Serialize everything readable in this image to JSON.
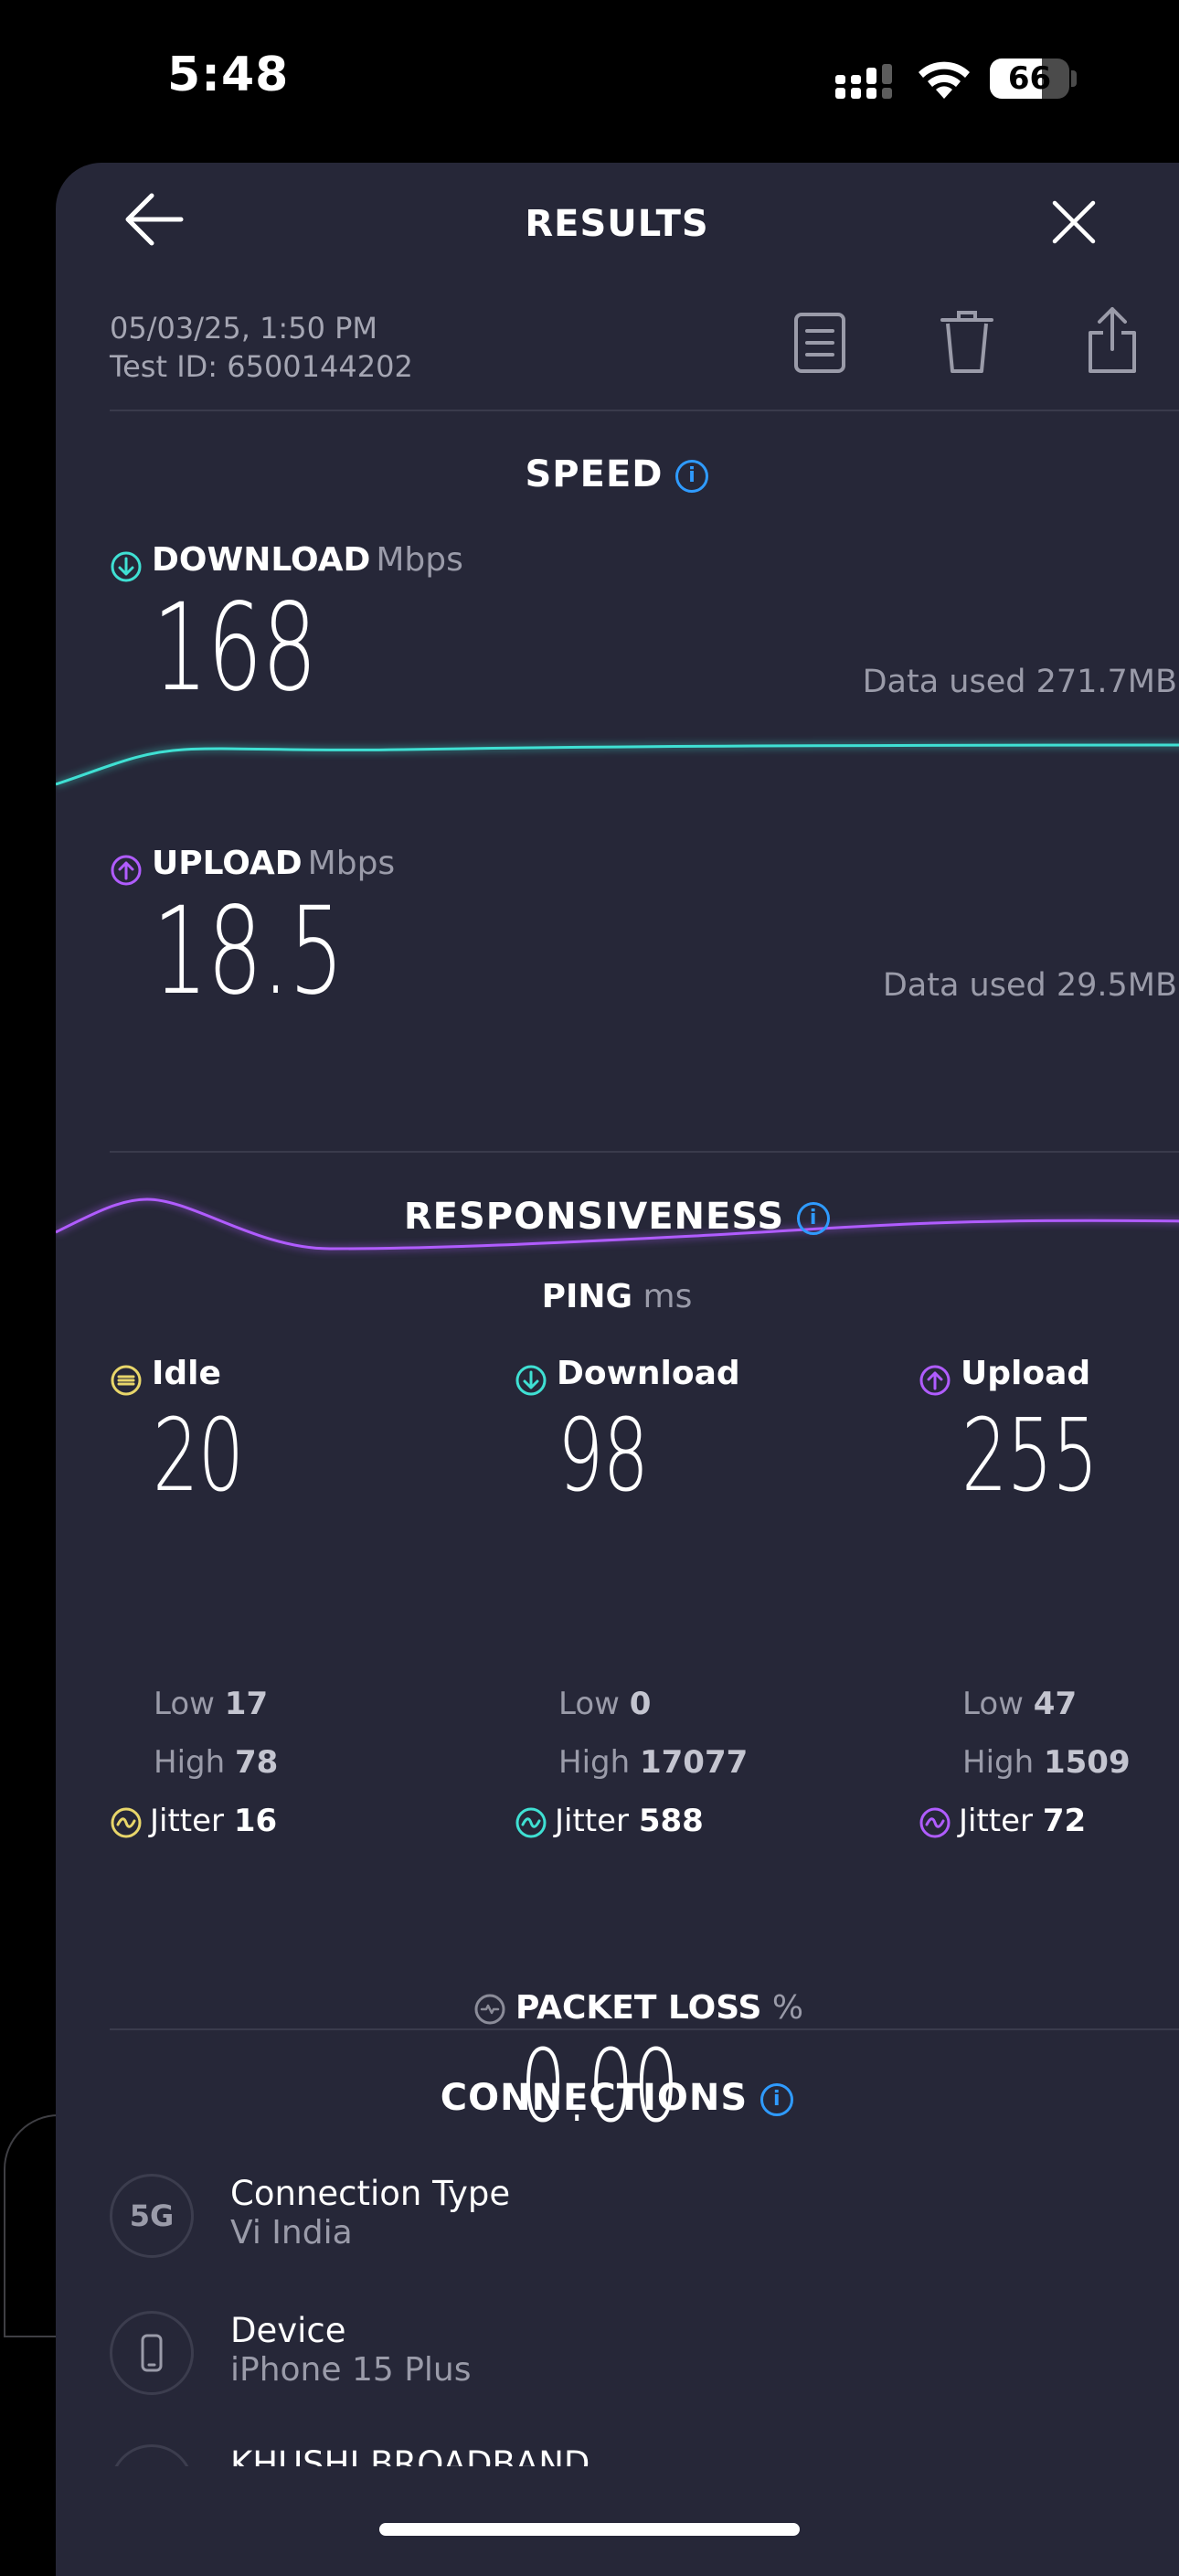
{
  "status_bar": {
    "time": "5:48",
    "battery": "66",
    "battery_level": 0.66
  },
  "header": {
    "title": "RESULTS"
  },
  "test": {
    "date": "05/03/25, 1:50 PM",
    "id": "Test ID: 6500144202"
  },
  "speed": {
    "title": "SPEED",
    "download": {
      "label": "DOWNLOAD",
      "unit": "Mbps",
      "value": "168",
      "data_used": "Data used 271.7MB",
      "color": "#3fe0d3"
    },
    "upload": {
      "label": "UPLOAD",
      "unit": "Mbps",
      "value": "18.5",
      "data_used": "Data used 29.5MB",
      "color": "#b05cff"
    }
  },
  "responsiveness": {
    "title": "RESPONSIVENESS",
    "ping_label": "PING",
    "ping_unit": "ms",
    "low_label": "Low",
    "high_label": "High",
    "jitter_label": "Jitter",
    "columns": [
      {
        "label": "Idle",
        "value": "20",
        "low": "17",
        "high": "78",
        "jitter": "16",
        "color": "#e8d66a",
        "icon": "idle-bolt-icon"
      },
      {
        "label": "Download",
        "value": "98",
        "low": "0",
        "high": "17077",
        "jitter": "588",
        "color": "#3fe0d3",
        "icon": "download-arrow-icon"
      },
      {
        "label": "Upload",
        "value": "255",
        "low": "47",
        "high": "1509",
        "jitter": "72",
        "color": "#b05cff",
        "icon": "upload-arrow-icon"
      }
    ]
  },
  "packet_loss": {
    "label": "PACKET LOSS",
    "unit": "%",
    "value": "0.00"
  },
  "connections": {
    "title": "CONNECTIONS",
    "items": [
      {
        "icon_text": "5G",
        "title": "Connection Type",
        "value": "Vi India"
      },
      {
        "icon_text": "",
        "title": "Device",
        "value": "iPhone 15 Plus"
      },
      {
        "icon_text": "",
        "title": "KHUSHI BROADBAND",
        "value": ""
      }
    ]
  }
}
